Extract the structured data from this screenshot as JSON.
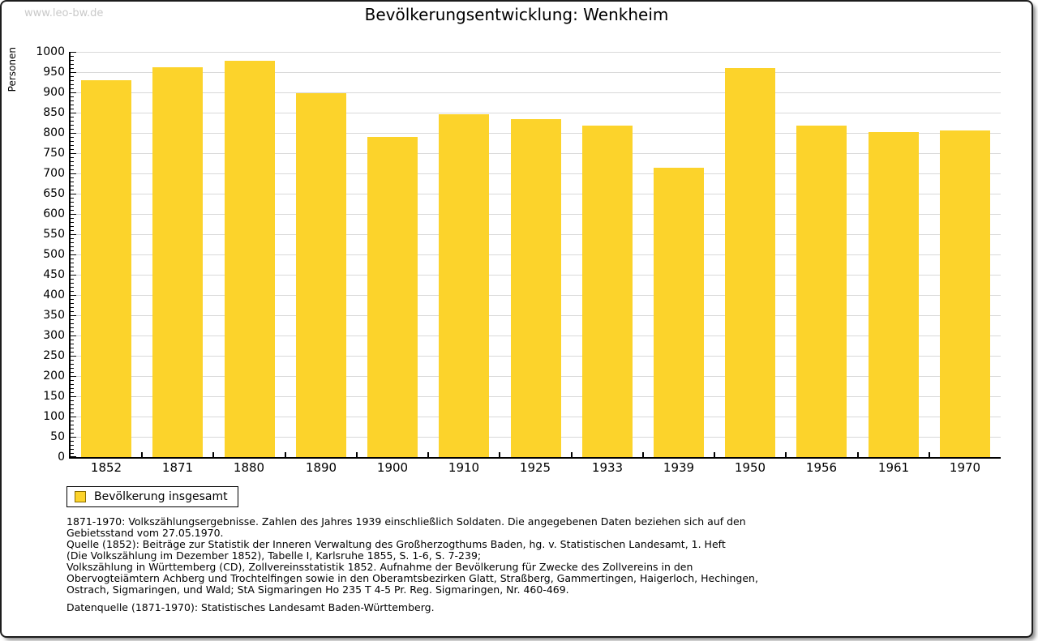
{
  "page": {
    "watermark": "www.leo-bw.de",
    "title": "Bevölkerungsentwicklung: Wenkheim"
  },
  "chart_data": {
    "type": "bar",
    "title": "Bevölkerungsentwicklung: Wenkheim",
    "xlabel": "",
    "ylabel": "Personen",
    "ylim": [
      0,
      1000
    ],
    "ytick_major_step": 50,
    "ytick_minor_step": 10,
    "grid": true,
    "legend_position": "bottom-left",
    "categories": [
      "1852",
      "1871",
      "1880",
      "1890",
      "1900",
      "1910",
      "1925",
      "1933",
      "1939",
      "1950",
      "1956",
      "1961",
      "1970"
    ],
    "series": [
      {
        "name": "Bevölkerung insgesamt",
        "values": [
          929,
          961,
          977,
          898,
          790,
          845,
          834,
          817,
          713,
          959,
          817,
          801,
          806
        ],
        "color": "#FCD32B"
      }
    ]
  },
  "legend": {
    "label": "Bevölkerung insgesamt",
    "swatch_color": "#FCD32B",
    "swatch_border_color": "#8a6d00"
  },
  "footnotes": {
    "lines": [
      "1871-1970: Volkszählungsergebnisse. Zahlen des Jahres 1939 einschließlich Soldaten. Die angegebenen Daten beziehen sich auf den",
      "Gebietsstand vom 27.05.1970.",
      "Quelle (1852): Beiträge zur Statistik der Inneren Verwaltung des Großherzogthums Baden, hg. v. Statistischen Landesamt, 1. Heft",
      "(Die Volkszählung im Dezember 1852), Tabelle I, Karlsruhe 1855, S. 1-6, S. 7-239;",
      "Volkszählung in Württemberg (CD), Zollvereinsstatistik 1852. Aufnahme der Bevölkerung für Zwecke des Zollvereins in den",
      "Obervogteiämtern Achberg und Trochtelfingen sowie in den Oberamtsbezirken Glatt, Straßberg, Gammertingen, Haigerloch, Hechingen,",
      "Ostrach, Sigmaringen, und Wald; StA Sigmaringen Ho 235 T 4-5 Pr. Reg. Sigmaringen, Nr. 460-469."
    ],
    "datasource": "Datenquelle (1871-1970): Statistisches Landesamt Baden-Württemberg."
  },
  "colors": {
    "bar": "#FCD32B",
    "gridline": "#d9d9d9",
    "axis": "#000000",
    "watermark": "#c9c9c9",
    "background": "#ffffff"
  }
}
